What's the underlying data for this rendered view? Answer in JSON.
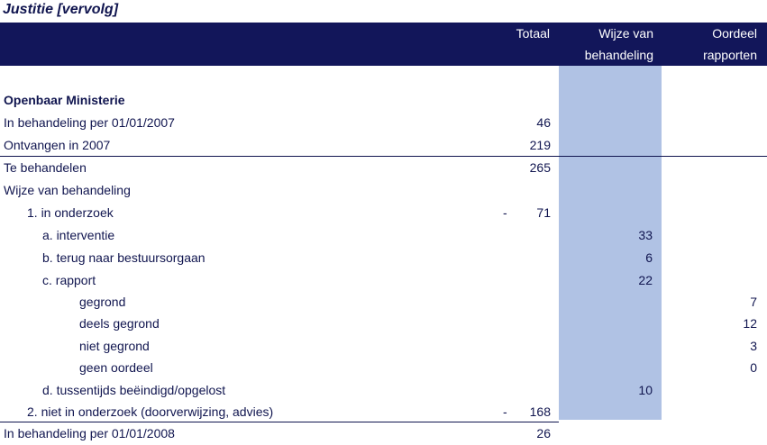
{
  "title": "Justitie [vervolg]",
  "header": {
    "col_totaal": "Totaal",
    "col_wijze_line1": "Wijze van",
    "col_wijze_line2": "behandeling",
    "col_oordeel_line1": "Oordeel",
    "col_oordeel_line2": "rapporten"
  },
  "colors": {
    "header_bg": "#12165a",
    "column_highlight": "#b0c2e4",
    "text": "#10154f"
  },
  "rows": [
    {
      "label": "Openbaar Ministerie",
      "bold": true,
      "dash": "",
      "totaal": "",
      "wijze": "",
      "oordeel": ""
    },
    {
      "label": "In behandeling per 01/01/2007",
      "dash": "",
      "totaal": "46",
      "wijze": "",
      "oordeel": ""
    },
    {
      "label": "Ontvangen in 2007",
      "dash": "",
      "totaal": "219",
      "wijze": "",
      "oordeel": ""
    },
    {
      "label": "Te behandelen",
      "dash": "",
      "totaal": "265",
      "wijze": "",
      "oordeel": ""
    },
    {
      "label": "Wijze van behandeling",
      "dash": "",
      "totaal": "",
      "wijze": "",
      "oordeel": ""
    },
    {
      "label": "1. in onderzoek",
      "dash": "-",
      "totaal": "71",
      "wijze": "",
      "oordeel": ""
    },
    {
      "label": "a. interventie",
      "dash": "",
      "totaal": "",
      "wijze": "33",
      "oordeel": ""
    },
    {
      "label": "b. terug naar bestuursorgaan",
      "dash": "",
      "totaal": "",
      "wijze": "6",
      "oordeel": ""
    },
    {
      "label": "c. rapport",
      "dash": "",
      "totaal": "",
      "wijze": "22",
      "oordeel": ""
    },
    {
      "label": "gegrond",
      "dash": "",
      "totaal": "",
      "wijze": "",
      "oordeel": "7"
    },
    {
      "label": "deels gegrond",
      "dash": "",
      "totaal": "",
      "wijze": "",
      "oordeel": "12"
    },
    {
      "label": "niet gegrond",
      "dash": "",
      "totaal": "",
      "wijze": "",
      "oordeel": "3"
    },
    {
      "label": "geen oordeel",
      "dash": "",
      "totaal": "",
      "wijze": "",
      "oordeel": "0"
    },
    {
      "label": "d. tussentijds beëindigd/opgelost",
      "dash": "",
      "totaal": "",
      "wijze": "10",
      "oordeel": ""
    },
    {
      "label": "2. niet in onderzoek (doorverwijzing, advies)",
      "dash": "-",
      "totaal": "168",
      "wijze": "",
      "oordeel": ""
    },
    {
      "label": "In behandeling per 01/01/2008",
      "dash": "",
      "totaal": "26",
      "wijze": "",
      "oordeel": ""
    }
  ]
}
